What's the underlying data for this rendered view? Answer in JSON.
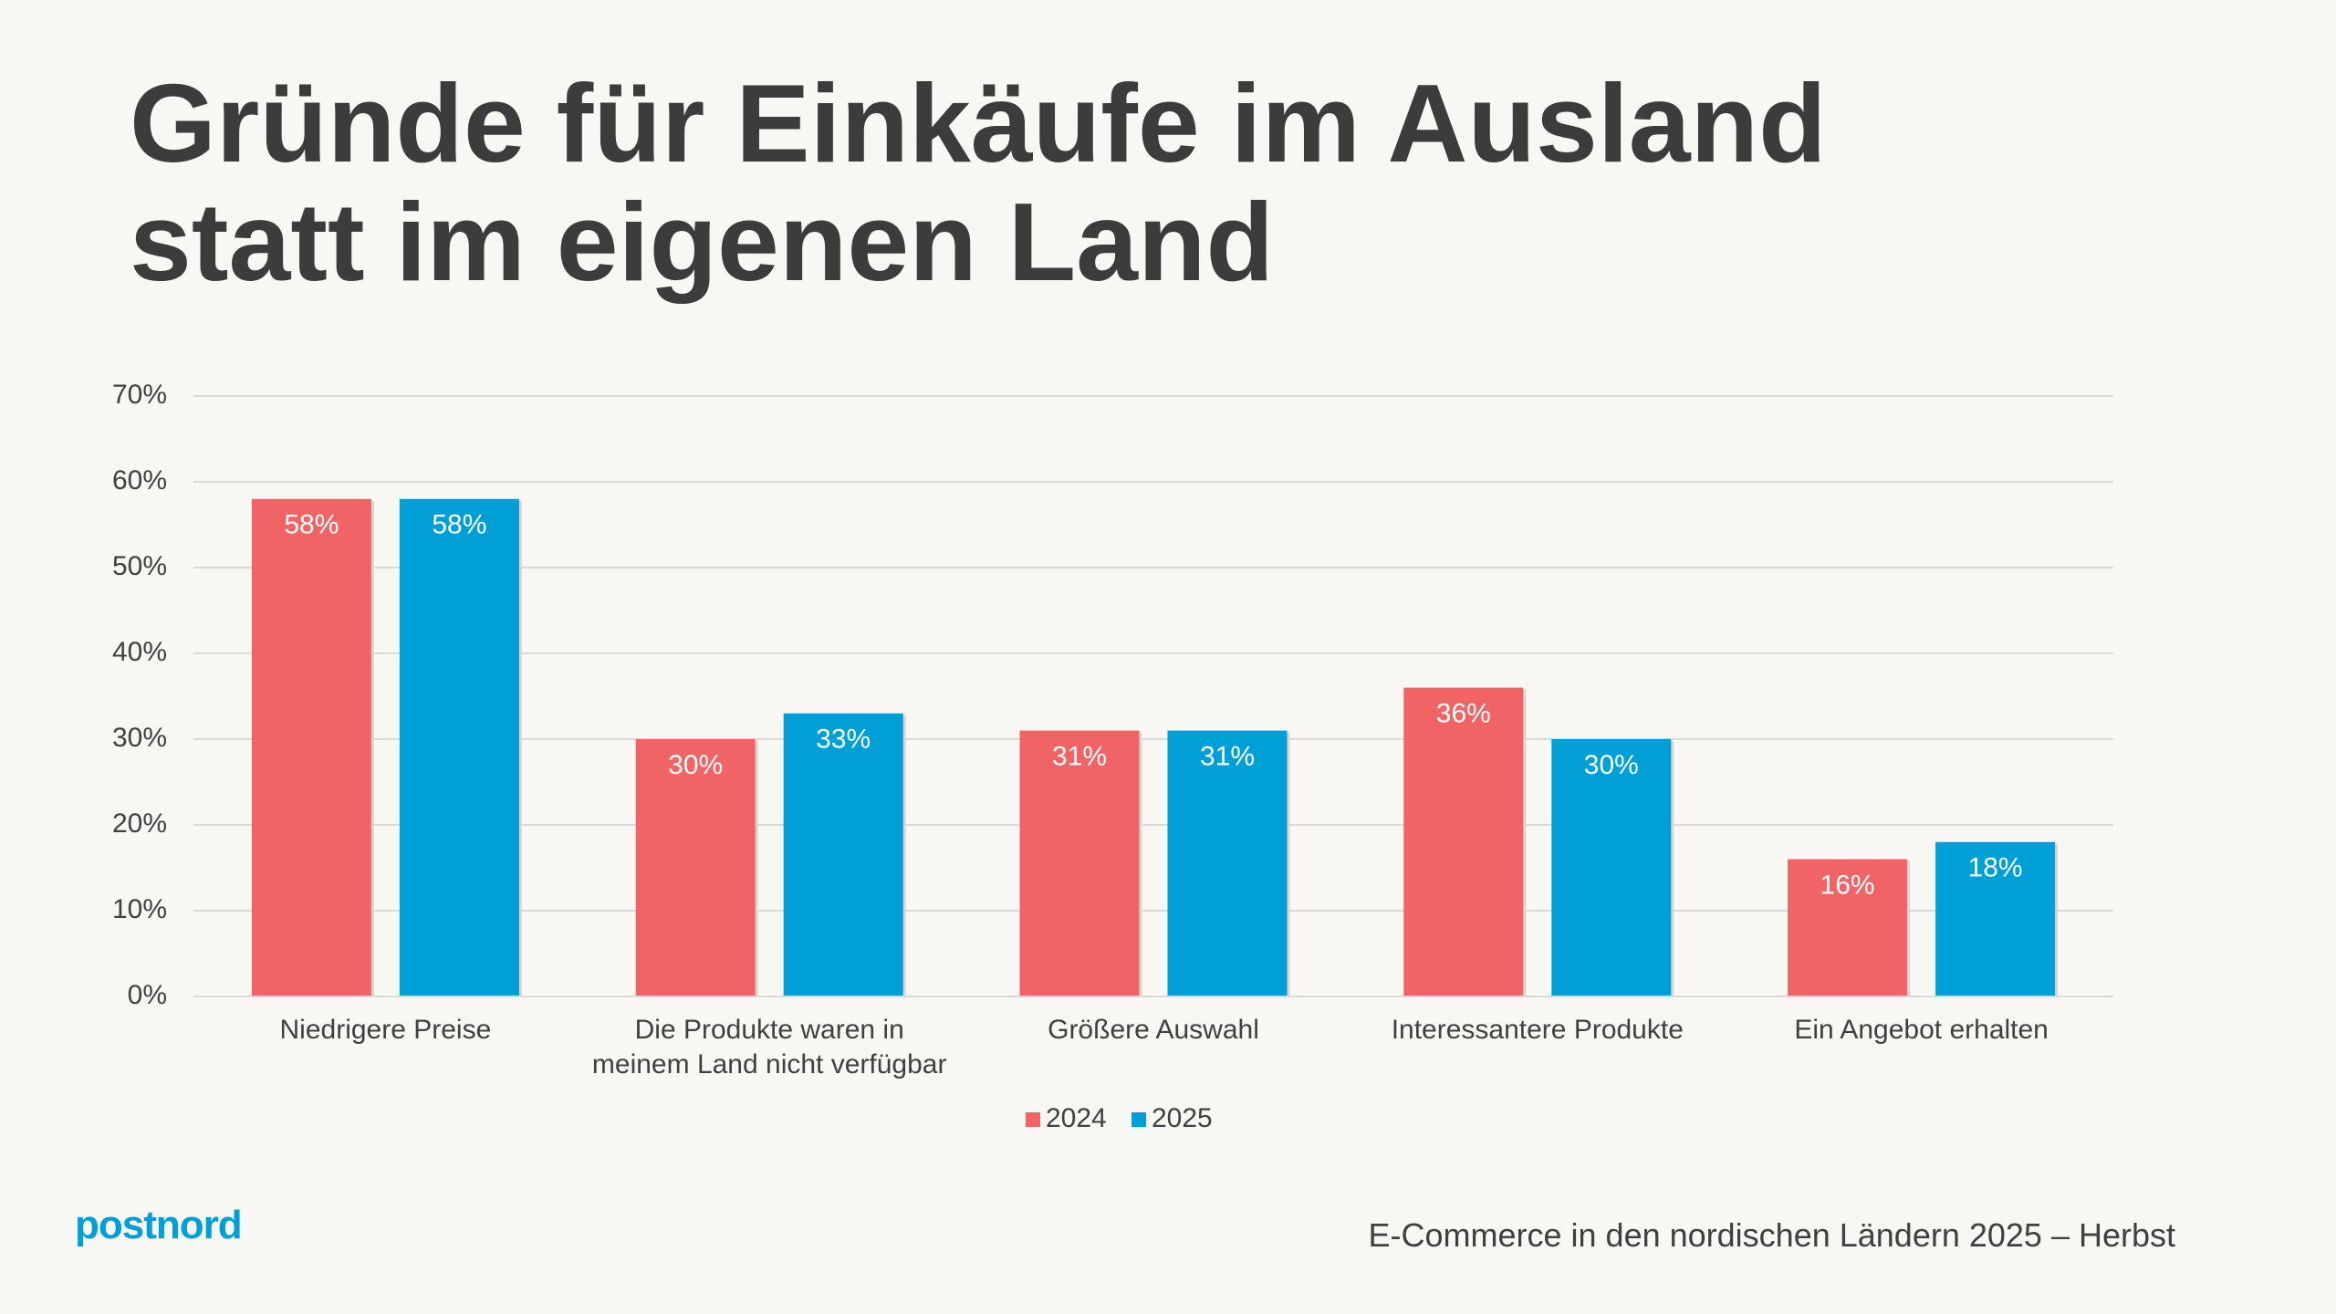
{
  "chart_data": {
    "type": "bar",
    "title": "Gründe für Einkäufe im Ausland statt im eigenen Land",
    "categories": [
      "Niedrigere Preise",
      "Die Produkte waren in meinem Land nicht verfügbar",
      "Größere Auswahl",
      "Interessantere Produkte",
      "Ein Angebot erhalten"
    ],
    "series": [
      {
        "name": "2024",
        "color": "#f06466",
        "values": [
          58,
          30,
          31,
          36,
          16
        ],
        "value_labels": [
          "58%",
          "30%",
          "31%",
          "36%",
          "16%"
        ]
      },
      {
        "name": "2025",
        "color": "#009fd6",
        "values": [
          58,
          33,
          31,
          30,
          18
        ],
        "value_labels": [
          "58%",
          "33%",
          "31%",
          "30%",
          "18%"
        ]
      }
    ],
    "ylim": [
      0,
      70
    ],
    "yticks": [
      {
        "value": 0,
        "label": "0%"
      },
      {
        "value": 10,
        "label": "10%"
      },
      {
        "value": 20,
        "label": "20%"
      },
      {
        "value": 30,
        "label": "30%"
      },
      {
        "value": 40,
        "label": "40%"
      },
      {
        "value": 50,
        "label": "50%"
      },
      {
        "value": 60,
        "label": "60%"
      },
      {
        "value": 70,
        "label": "70%"
      }
    ],
    "grid": true,
    "legend": "bottom"
  },
  "logo": "postnord",
  "footer": "E-Commerce in den nordischen Ländern 2025 – Herbst"
}
